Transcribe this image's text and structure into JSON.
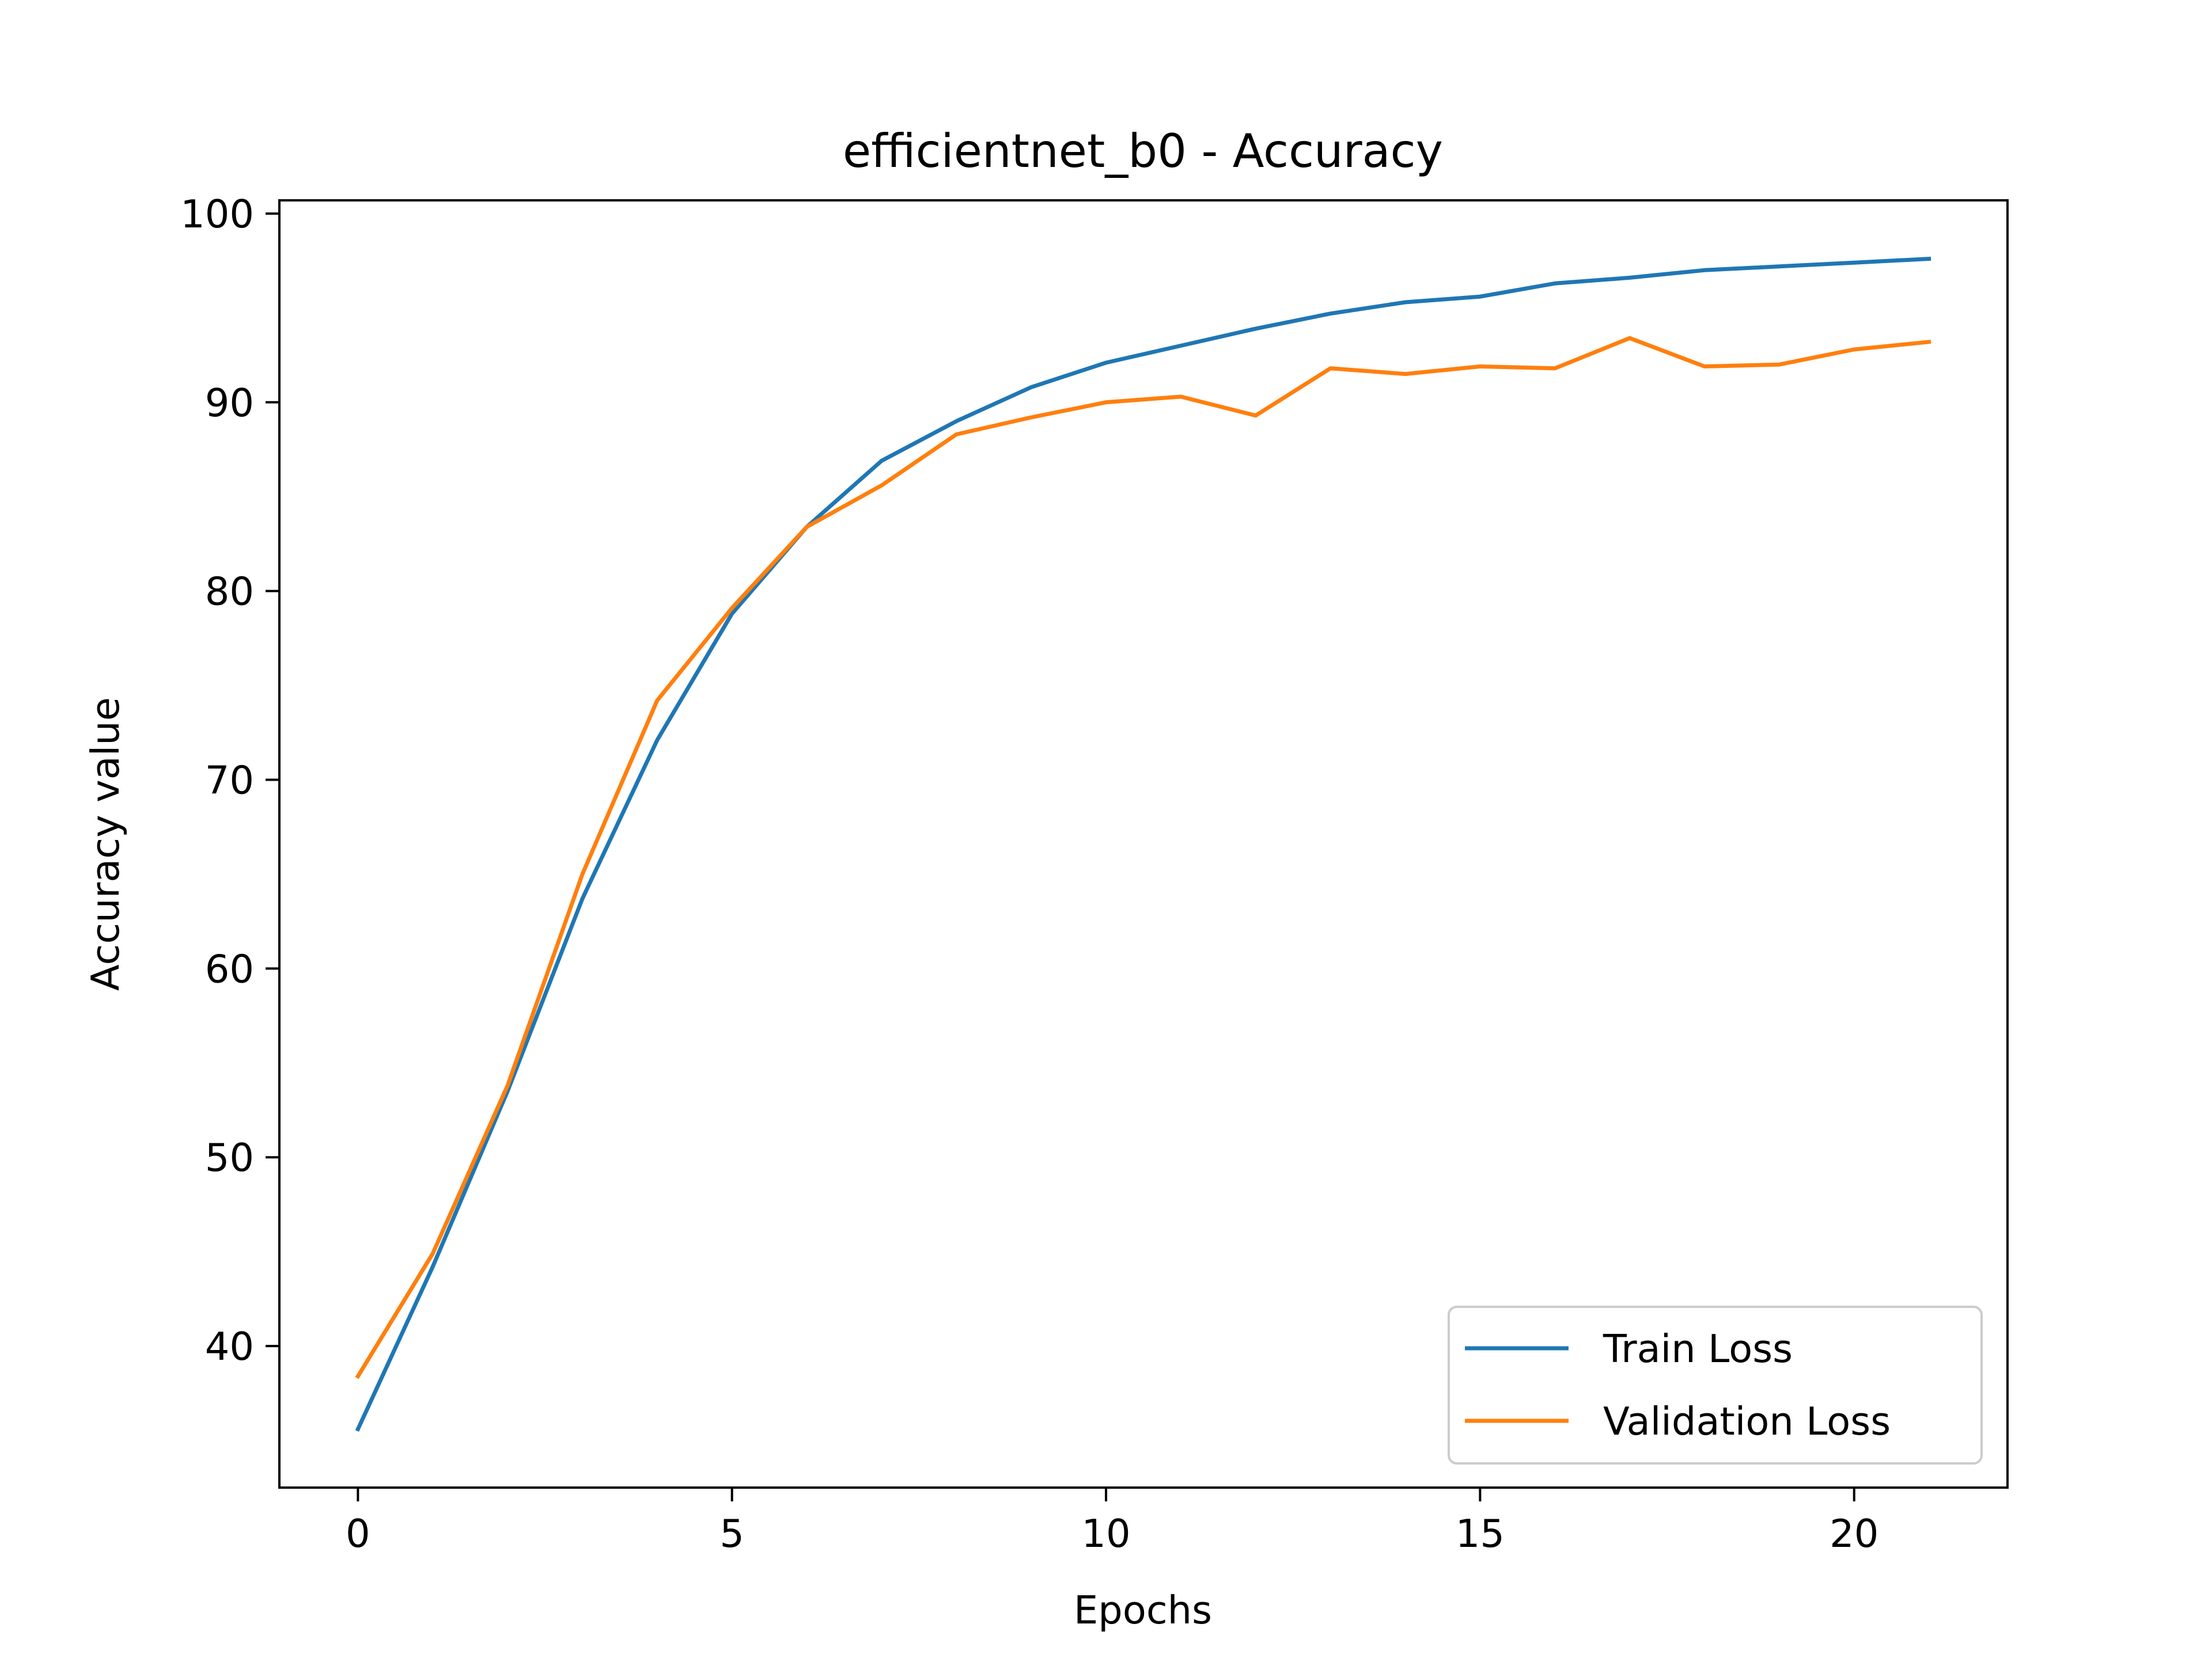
{
  "chart_data": {
    "type": "line",
    "title": "efficientnet_b0 - Accuracy",
    "xlabel": "Epochs",
    "ylabel": "Accuracy value",
    "xlim": [
      -1.05,
      22.05
    ],
    "ylim": [
      32.5,
      100.7
    ],
    "xticks": [
      0,
      5,
      10,
      15,
      20
    ],
    "yticks": [
      40,
      50,
      60,
      70,
      80,
      90,
      100
    ],
    "grid": false,
    "legend": "lower-right",
    "x": [
      0,
      1,
      2,
      3,
      4,
      5,
      6,
      7,
      8,
      9,
      10,
      11,
      12,
      13,
      14,
      15,
      16,
      17,
      18,
      19,
      20,
      21
    ],
    "series": [
      {
        "name": "Train Loss",
        "color": "#1f77b4",
        "values": [
          35.6,
          44.2,
          53.5,
          63.7,
          72.1,
          78.8,
          83.4,
          86.9,
          89.0,
          90.8,
          92.1,
          93.0,
          93.9,
          94.7,
          95.3,
          95.6,
          96.3,
          96.6,
          97.0,
          97.2,
          97.4,
          97.6
        ]
      },
      {
        "name": "Validation Loss",
        "color": "#ff7f0e",
        "values": [
          38.4,
          44.9,
          53.8,
          65.0,
          74.2,
          79.1,
          83.4,
          85.6,
          88.3,
          89.2,
          90.0,
          90.3,
          89.3,
          91.8,
          91.5,
          91.9,
          91.8,
          93.4,
          91.9,
          92.0,
          92.8,
          93.2
        ]
      }
    ]
  }
}
